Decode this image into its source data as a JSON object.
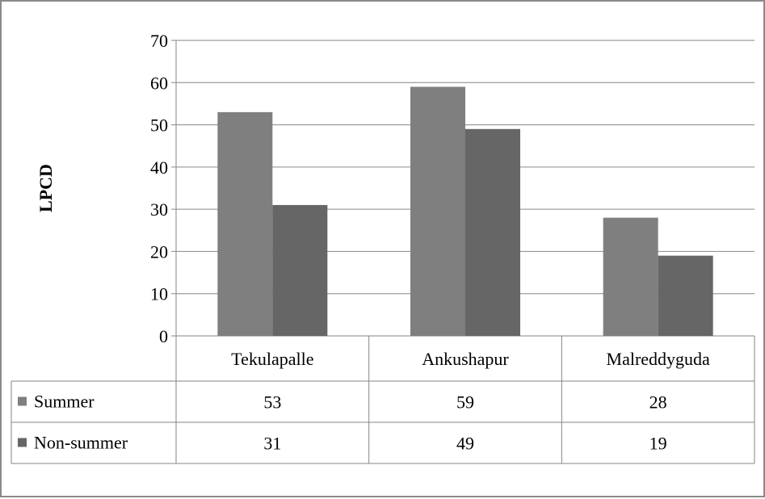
{
  "chart_data": {
    "type": "bar",
    "ylabel": "LPCD",
    "ylim": [
      0,
      70
    ],
    "yticks": [
      0,
      10,
      20,
      30,
      40,
      50,
      60,
      70
    ],
    "grid": true,
    "categories": [
      "Tekulapalle",
      "Ankushapur",
      "Malreddyguda"
    ],
    "series": [
      {
        "name": "Summer",
        "values": [
          53,
          59,
          28
        ],
        "color": "#7f7f7f"
      },
      {
        "name": "Non-summer",
        "values": [
          31,
          49,
          19
        ],
        "color": "#666666"
      }
    ],
    "data_table": true,
    "legend": "data-table-left"
  },
  "colors": {
    "gridline": "#868686",
    "table_border": "#868686",
    "frame": "#8a8a8a"
  }
}
